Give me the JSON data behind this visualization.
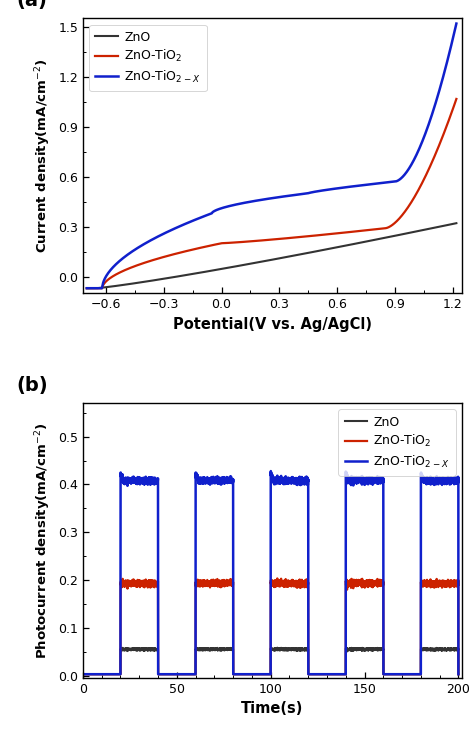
{
  "panel_a": {
    "xlabel": "Potential(V vs. Ag/AgCl)",
    "ylabel": "Current density(mA/cm$^{-2}$)",
    "xlim": [
      -0.72,
      1.25
    ],
    "ylim": [
      -0.1,
      1.55
    ],
    "xticks": [
      -0.6,
      -0.3,
      0.0,
      0.3,
      0.6,
      0.9,
      1.2
    ],
    "yticks": [
      0.0,
      0.3,
      0.6,
      0.9,
      1.2,
      1.5
    ],
    "legend_labels": [
      "ZnO",
      "ZnO-TiO$_2$",
      "ZnO-TiO$_{2-X}$"
    ],
    "colors": [
      "#333333",
      "#cc2200",
      "#1020cc"
    ],
    "linewidths": [
      1.5,
      1.6,
      1.8
    ]
  },
  "panel_b": {
    "xlabel": "Time(s)",
    "ylabel": "Photocurrent density(mA/cm$^{-2}$)",
    "xlim": [
      0,
      202
    ],
    "ylim": [
      -0.005,
      0.57
    ],
    "xticks": [
      0,
      50,
      100,
      150,
      200
    ],
    "yticks": [
      0.0,
      0.1,
      0.2,
      0.3,
      0.4,
      0.5
    ],
    "legend_labels": [
      "ZnO",
      "ZnO-TiO$_2$",
      "ZnO-TiO$_{2-X}$"
    ],
    "colors": [
      "#333333",
      "#cc2200",
      "#1020cc"
    ],
    "linewidths": [
      1.5,
      1.6,
      1.8
    ],
    "zno_on": 0.055,
    "tio2_on": 0.193,
    "tio2x_on": 0.408,
    "off_val": 0.003,
    "on_times": [
      20,
      60,
      100,
      140,
      180
    ],
    "off_times": [
      40,
      80,
      120,
      160,
      200
    ]
  }
}
